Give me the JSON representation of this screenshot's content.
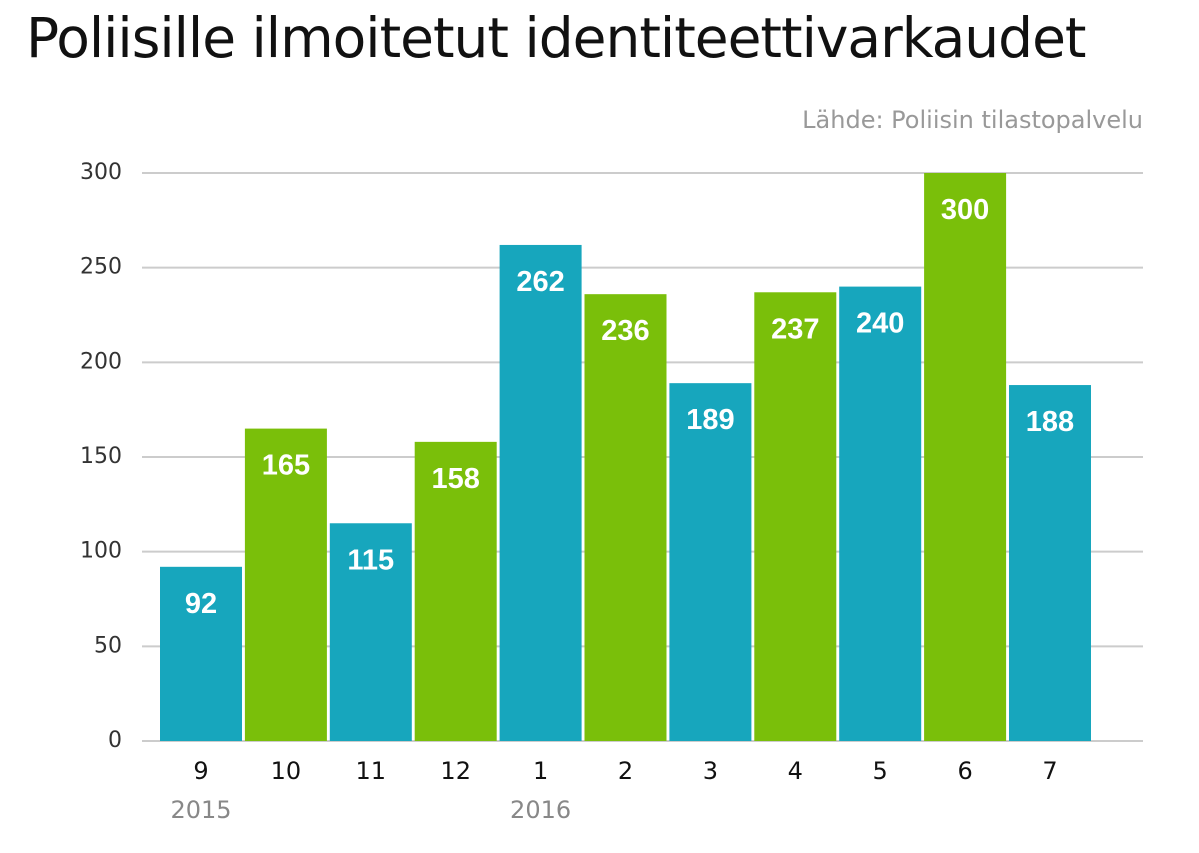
{
  "chart_data": {
    "type": "bar",
    "title": "Poliisille ilmoitetut identiteettivarkaudet",
    "source": "Lähde: Poliisin tilastopalvelu",
    "categories": [
      "9",
      "10",
      "11",
      "12",
      "1",
      "2",
      "3",
      "4",
      "5",
      "6",
      "7"
    ],
    "values": [
      92,
      165,
      115,
      158,
      262,
      236,
      189,
      237,
      240,
      300,
      188
    ],
    "bar_colors": [
      "#17a6bd",
      "#7abf0a",
      "#17a6bd",
      "#7abf0a",
      "#17a6bd",
      "#7abf0a",
      "#17a6bd",
      "#7abf0a",
      "#17a6bd",
      "#7abf0a",
      "#17a6bd"
    ],
    "year_labels": [
      {
        "category_index": 0,
        "label": "2015"
      },
      {
        "category_index": 4,
        "label": "2016"
      }
    ],
    "yticks": [
      0,
      50,
      100,
      150,
      200,
      250,
      300
    ],
    "ylim": [
      0,
      300
    ],
    "grid": true,
    "xlabel": "",
    "ylabel": "",
    "colors": {
      "blue": "#17a6bd",
      "green": "#7abf0a",
      "grid": "#cccccc",
      "label": "#ffffff"
    }
  }
}
